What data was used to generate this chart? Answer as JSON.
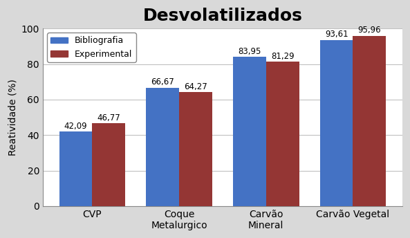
{
  "title": "Desvolatilizados",
  "categories": [
    "CVP",
    "Coque\nMetalurgico",
    "Carvão\nMineral",
    "Carvão Vegetal"
  ],
  "bibliografia": [
    42.09,
    66.67,
    83.95,
    93.61
  ],
  "experimental": [
    46.77,
    64.27,
    81.29,
    95.96
  ],
  "bar_color_bib": "#4472C4",
  "bar_color_exp": "#943634",
  "ylabel": "Reatividade (%)",
  "ylim": [
    0,
    100
  ],
  "yticks": [
    0,
    20,
    40,
    60,
    80,
    100
  ],
  "legend_labels": [
    "Bibliografia",
    "Experimental"
  ],
  "title_fontsize": 18,
  "label_fontsize": 10,
  "tick_fontsize": 10,
  "bar_width": 0.38,
  "figure_bg_color": "#D9D9D9",
  "plot_bg_color": "#FFFFFF",
  "grid_color": "#C0C0C0"
}
